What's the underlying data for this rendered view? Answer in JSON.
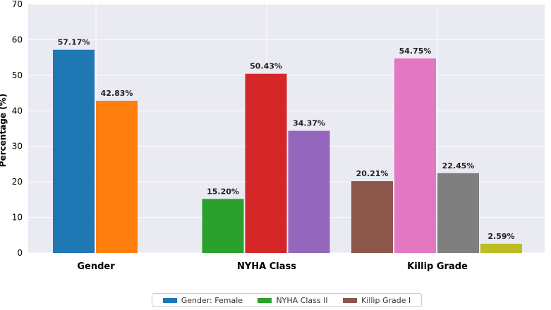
{
  "chart_data": {
    "type": "bar",
    "title": "",
    "ylabel": "Percentage (%)",
    "xlabel": "",
    "ylim": [
      0,
      70
    ],
    "yticks": [
      0,
      10,
      20,
      30,
      40,
      50,
      60,
      70
    ],
    "grid": true,
    "legend_position": "bottom",
    "groups": [
      {
        "label": "Gender",
        "bars": [
          {
            "value": 57.17,
            "label": "57.17%",
            "color": "#1f77b4"
          },
          {
            "value": 42.83,
            "label": "42.83%",
            "color": "#ff7f0e"
          }
        ]
      },
      {
        "label": "NYHA Class",
        "bars": [
          {
            "value": 15.2,
            "label": "15.20%",
            "color": "#2ca02c"
          },
          {
            "value": 50.43,
            "label": "50.43%",
            "color": "#d62728"
          },
          {
            "value": 34.37,
            "label": "34.37%",
            "color": "#9467bd"
          }
        ]
      },
      {
        "label": "Killip Grade",
        "bars": [
          {
            "value": 20.21,
            "label": "20.21%",
            "color": "#8c564b"
          },
          {
            "value": 54.75,
            "label": "54.75%",
            "color": "#e377c2"
          },
          {
            "value": 22.45,
            "label": "22.45%",
            "color": "#7f7f7f"
          },
          {
            "value": 2.59,
            "label": "2.59%",
            "color": "#bcbd22"
          }
        ]
      }
    ],
    "legend": [
      {
        "label": "Gender: Female",
        "color": "#1f77b4"
      },
      {
        "label": "NYHA Class II",
        "color": "#2ca02c"
      },
      {
        "label": "Killip Grade I",
        "color": "#8c564b"
      }
    ]
  }
}
